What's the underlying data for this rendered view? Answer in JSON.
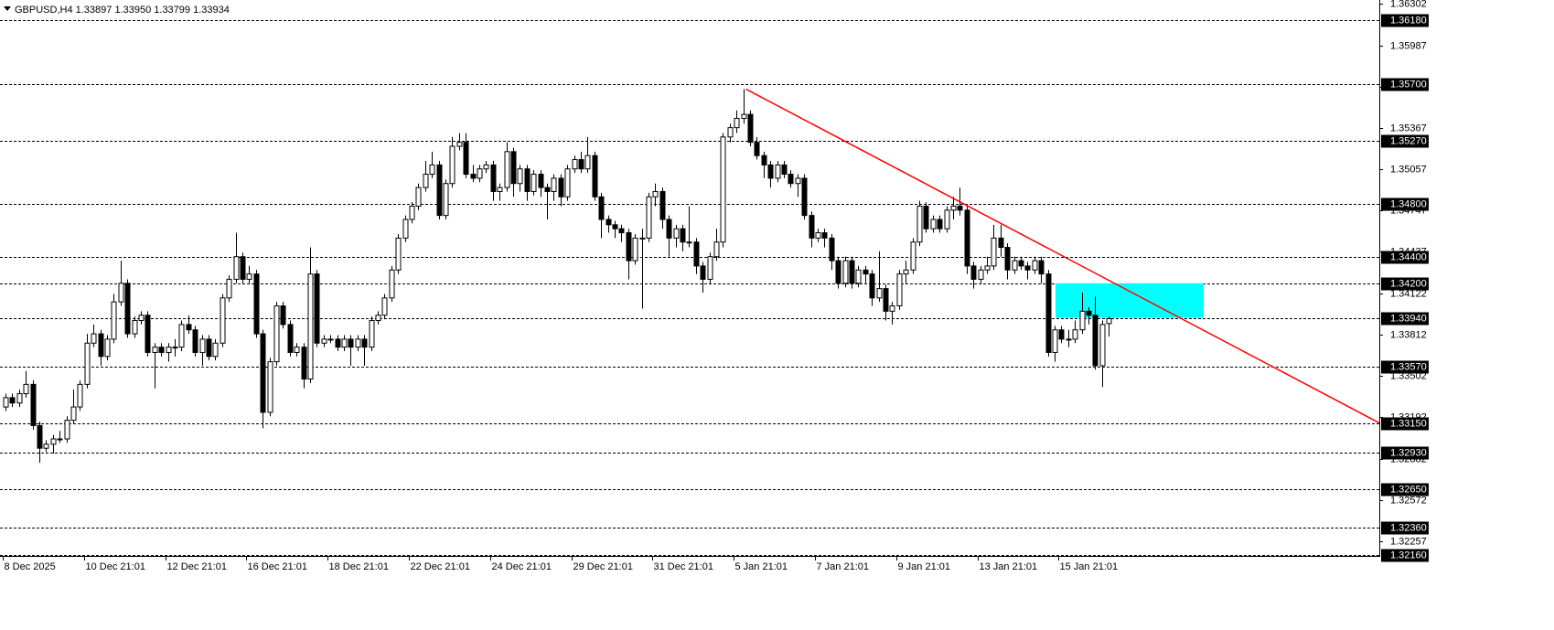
{
  "chart_data": {
    "type": "candlestick",
    "title": "GBPUSD,H4  1.33897 1.33950 1.33799 1.33934",
    "categories": [
      "8 Dec 2025",
      null,
      null,
      null,
      null,
      null,
      null,
      null,
      null,
      null,
      null,
      null,
      "10 Dec 21:01",
      null,
      null,
      null,
      null,
      null,
      null,
      null,
      null,
      null,
      null,
      null,
      "12 Dec 21:01",
      null,
      null,
      null,
      null,
      null,
      null,
      null,
      null,
      null,
      null,
      null,
      "16 Dec 21:01",
      null,
      null,
      null,
      null,
      null,
      null,
      null,
      null,
      null,
      null,
      null,
      "18 Dec 21:01",
      null,
      null,
      null,
      null,
      null,
      null,
      null,
      null,
      null,
      null,
      null,
      "22 Dec 21:01",
      null,
      null,
      null,
      null,
      null,
      null,
      null,
      null,
      null,
      null,
      null,
      "24 Dec 21:01",
      null,
      null,
      null,
      null,
      null,
      null,
      null,
      null,
      null,
      null,
      null,
      "29 Dec 21:01",
      null,
      null,
      null,
      null,
      null,
      null,
      null,
      null,
      null,
      null,
      null,
      "31 Dec 21:01",
      null,
      null,
      null,
      null,
      null,
      null,
      null,
      null,
      null,
      null,
      null,
      "5 Jan 21:01",
      null,
      null,
      null,
      null,
      null,
      null,
      null,
      null,
      null,
      null,
      null,
      "7 Jan 21:01",
      null,
      null,
      null,
      null,
      null,
      null,
      null,
      null,
      null,
      null,
      null,
      "9 Jan 21:01",
      null,
      null,
      null,
      null,
      null,
      null,
      null,
      null,
      null,
      null,
      null,
      "13 Jan 21:01",
      null,
      null,
      null,
      null,
      null,
      null,
      null,
      null,
      null,
      null,
      null,
      "15 Jan 21:01",
      null,
      null,
      null,
      null,
      null,
      null,
      null
    ],
    "open": [
      1.3327,
      1.3334,
      1.333,
      1.3337,
      1.3344,
      1.3313,
      1.3296,
      1.3299,
      1.3303,
      1.3303,
      1.3317,
      1.3327,
      1.3344,
      1.3375,
      1.3382,
      1.3365,
      1.3378,
      1.3406,
      1.342,
      1.3382,
      1.3392,
      1.3396,
      1.3368,
      1.3372,
      1.3368,
      1.3372,
      1.3372,
      1.3389,
      1.3385,
      1.3368,
      1.3378,
      1.3365,
      1.3375,
      1.3409,
      1.3423,
      1.344,
      1.3423,
      1.3427,
      1.3382,
      1.3323,
      1.3361,
      1.3403,
      1.3389,
      1.3368,
      1.3372,
      1.3348,
      1.3427,
      1.3375,
      1.3378,
      1.3378,
      1.3372,
      1.3378,
      1.3372,
      1.3378,
      1.3372,
      1.3392,
      1.3396,
      1.3409,
      1.343,
      1.3454,
      1.3468,
      1.3478,
      1.3492,
      1.3502,
      1.3509,
      1.3471,
      1.3495,
      1.3523,
      1.3526,
      1.3502,
      1.3499,
      1.3506,
      1.3509,
      1.3489,
      1.3492,
      1.3519,
      1.3495,
      1.3506,
      1.3489,
      1.3502,
      1.3492,
      1.3489,
      1.3499,
      1.3485,
      1.3506,
      1.3513,
      1.3506,
      1.3516,
      1.3485,
      1.3468,
      1.3464,
      1.3461,
      1.3458,
      1.3437,
      1.3454,
      1.3454,
      1.3485,
      1.3489,
      1.3468,
      1.3454,
      1.3461,
      1.3451,
      1.3451,
      1.3433,
      1.3423,
      1.344,
      1.3451,
      1.353,
      1.3537,
      1.3544,
      1.3547,
      1.3526,
      1.3516,
      1.3509,
      1.3499,
      1.3509,
      1.3502,
      1.3495,
      1.3499,
      1.3471,
      1.3454,
      1.3458,
      1.3454,
      1.3437,
      1.342,
      1.3437,
      1.342,
      1.343,
      1.3427,
      1.3409,
      1.3416,
      1.3399,
      1.3403,
      1.3427,
      1.343,
      1.3451,
      1.3478,
      1.3461,
      1.3468,
      1.3461,
      1.3475,
      1.3478,
      1.3475,
      1.3433,
      1.3423,
      1.343,
      1.3433,
      1.3454,
      1.3447,
      1.343,
      1.3437,
      1.3433,
      1.343,
      1.3437,
      1.3427,
      1.3368,
      1.3385,
      1.3378,
      1.3378,
      1.3385,
      1.3399,
      1.3396,
      1.3358,
      1.33897
    ],
    "high": [
      1.3337,
      1.3337,
      1.334,
      1.3354,
      1.3347,
      1.3316,
      1.3302,
      1.3306,
      1.3309,
      1.332,
      1.334,
      1.3347,
      1.3382,
      1.3389,
      1.3385,
      1.3381,
      1.3412,
      1.3437,
      1.3423,
      1.3395,
      1.3399,
      1.3399,
      1.3375,
      1.3375,
      1.3375,
      1.3378,
      1.3392,
      1.3396,
      1.3388,
      1.3381,
      1.3381,
      1.3378,
      1.3412,
      1.3426,
      1.3458,
      1.3443,
      1.3433,
      1.343,
      1.3385,
      1.3364,
      1.3406,
      1.3406,
      1.3392,
      1.3375,
      1.3375,
      1.3447,
      1.343,
      1.3381,
      1.3381,
      1.3381,
      1.3381,
      1.3381,
      1.3381,
      1.3381,
      1.3395,
      1.3399,
      1.3412,
      1.3433,
      1.3457,
      1.3471,
      1.3481,
      1.3495,
      1.3512,
      1.3519,
      1.3512,
      1.3498,
      1.353,
      1.3533,
      1.3533,
      1.3509,
      1.3509,
      1.3512,
      1.3512,
      1.3495,
      1.3526,
      1.3522,
      1.3509,
      1.3509,
      1.3505,
      1.3505,
      1.3495,
      1.3502,
      1.3502,
      1.3509,
      1.3516,
      1.3519,
      1.353,
      1.3519,
      1.3488,
      1.3471,
      1.3467,
      1.3464,
      1.3461,
      1.3457,
      1.3461,
      1.3488,
      1.3495,
      1.3492,
      1.3471,
      1.3464,
      1.3464,
      1.3478,
      1.3454,
      1.3436,
      1.3443,
      1.3461,
      1.3533,
      1.354,
      1.355,
      1.3566,
      1.355,
      1.353,
      1.3519,
      1.3512,
      1.3512,
      1.3512,
      1.3505,
      1.3502,
      1.3502,
      1.3474,
      1.3461,
      1.3461,
      1.3457,
      1.344,
      1.344,
      1.344,
      1.3433,
      1.3433,
      1.343,
      1.3444,
      1.3419,
      1.3406,
      1.343,
      1.3437,
      1.3454,
      1.3482,
      1.3481,
      1.3471,
      1.3471,
      1.3478,
      1.3485,
      1.3492,
      1.3478,
      1.3436,
      1.3433,
      1.344,
      1.3464,
      1.3464,
      1.345,
      1.344,
      1.344,
      1.3436,
      1.344,
      1.344,
      1.343,
      1.3388,
      1.3388,
      1.3385,
      1.3392,
      1.3413,
      1.3402,
      1.341,
      1.3392,
      1.3395
    ],
    "low": [
      1.3324,
      1.3327,
      1.3327,
      1.3334,
      1.331,
      1.3285,
      1.3293,
      1.3292,
      1.33,
      1.33,
      1.3314,
      1.3324,
      1.3341,
      1.3372,
      1.3358,
      1.3362,
      1.3375,
      1.3403,
      1.3379,
      1.3379,
      1.3389,
      1.3365,
      1.3341,
      1.3365,
      1.3361,
      1.3365,
      1.3369,
      1.3382,
      1.3365,
      1.3358,
      1.3362,
      1.3362,
      1.3372,
      1.3406,
      1.342,
      1.342,
      1.342,
      1.3379,
      1.3311,
      1.332,
      1.3358,
      1.3386,
      1.3365,
      1.3365,
      1.3341,
      1.3345,
      1.3372,
      1.3372,
      1.3375,
      1.3369,
      1.3369,
      1.3358,
      1.3369,
      1.3358,
      1.3369,
      1.3389,
      1.3393,
      1.3406,
      1.3427,
      1.3451,
      1.3465,
      1.3475,
      1.3489,
      1.3499,
      1.3468,
      1.3468,
      1.3492,
      1.352,
      1.3499,
      1.3496,
      1.3496,
      1.3503,
      1.3482,
      1.3482,
      1.3489,
      1.3485,
      1.3489,
      1.3482,
      1.3486,
      1.3485,
      1.3468,
      1.3482,
      1.3478,
      1.3482,
      1.3503,
      1.3503,
      1.3503,
      1.3482,
      1.3454,
      1.3458,
      1.3454,
      1.3451,
      1.3423,
      1.3434,
      1.3401,
      1.3451,
      1.3478,
      1.3461,
      1.344,
      1.3447,
      1.3444,
      1.3447,
      1.3427,
      1.3413,
      1.342,
      1.3437,
      1.3447,
      1.3526,
      1.3533,
      1.354,
      1.3523,
      1.3513,
      1.3499,
      1.3492,
      1.3496,
      1.3499,
      1.3492,
      1.3485,
      1.3468,
      1.3447,
      1.3451,
      1.3447,
      1.343,
      1.3416,
      1.3417,
      1.3416,
      1.3417,
      1.342,
      1.3403,
      1.3406,
      1.3392,
      1.3389,
      1.34,
      1.342,
      1.3427,
      1.3448,
      1.3458,
      1.3458,
      1.3458,
      1.3458,
      1.3468,
      1.3471,
      1.3427,
      1.3416,
      1.342,
      1.3427,
      1.343,
      1.344,
      1.3423,
      1.3427,
      1.343,
      1.3423,
      1.3427,
      1.342,
      1.3365,
      1.3361,
      1.3375,
      1.3372,
      1.3375,
      1.3382,
      1.3389,
      1.3355,
      1.3342,
      1.33799
    ],
    "close": [
      1.3334,
      1.333,
      1.3337,
      1.3344,
      1.3313,
      1.3296,
      1.3299,
      1.3303,
      1.3303,
      1.3317,
      1.3327,
      1.3344,
      1.3375,
      1.3382,
      1.3365,
      1.3378,
      1.3406,
      1.342,
      1.3382,
      1.3392,
      1.3396,
      1.3368,
      1.3372,
      1.3368,
      1.3372,
      1.3372,
      1.3389,
      1.3385,
      1.3368,
      1.3378,
      1.3365,
      1.3375,
      1.3409,
      1.3423,
      1.344,
      1.3423,
      1.3427,
      1.3382,
      1.3323,
      1.3361,
      1.3403,
      1.3389,
      1.3368,
      1.3372,
      1.3348,
      1.3427,
      1.3375,
      1.3378,
      1.3378,
      1.3372,
      1.3378,
      1.3372,
      1.3378,
      1.3372,
      1.3392,
      1.3396,
      1.3409,
      1.343,
      1.3454,
      1.3468,
      1.3478,
      1.3492,
      1.3502,
      1.3509,
      1.3471,
      1.3495,
      1.3523,
      1.3526,
      1.3502,
      1.3499,
      1.3506,
      1.3509,
      1.3489,
      1.3492,
      1.3519,
      1.3495,
      1.3506,
      1.3489,
      1.3502,
      1.3492,
      1.3489,
      1.3499,
      1.3485,
      1.3506,
      1.3513,
      1.3506,
      1.3516,
      1.3485,
      1.3468,
      1.3464,
      1.3461,
      1.3458,
      1.3437,
      1.3454,
      1.3454,
      1.3485,
      1.3489,
      1.3468,
      1.3454,
      1.3461,
      1.3451,
      1.3451,
      1.3433,
      1.3423,
      1.344,
      1.3451,
      1.353,
      1.3537,
      1.3544,
      1.3547,
      1.3526,
      1.3516,
      1.3509,
      1.3499,
      1.3509,
      1.3502,
      1.3495,
      1.3499,
      1.3471,
      1.3454,
      1.3458,
      1.3454,
      1.3437,
      1.342,
      1.3437,
      1.342,
      1.343,
      1.3427,
      1.3409,
      1.3416,
      1.3399,
      1.3403,
      1.3427,
      1.343,
      1.3451,
      1.3478,
      1.3461,
      1.3468,
      1.3461,
      1.3475,
      1.3478,
      1.3475,
      1.3433,
      1.3423,
      1.343,
      1.3433,
      1.3454,
      1.3447,
      1.343,
      1.3437,
      1.3433,
      1.343,
      1.3437,
      1.3427,
      1.3368,
      1.3385,
      1.3378,
      1.3378,
      1.3385,
      1.3399,
      1.3396,
      1.3358,
      1.3389,
      1.33934
    ],
    "up_color": "#ffffff",
    "down_color": "#000000",
    "ylim": [
      1.3215,
      1.3633
    ],
    "yticks": [
      1.36302,
      1.35987,
      1.35677,
      1.35367,
      1.35057,
      1.34747,
      1.34437,
      1.34122,
      1.33812,
      1.33502,
      1.33192,
      1.32882,
      1.32572,
      1.32257
    ],
    "levels": [
      {
        "value": 1.3618,
        "label": "1.36180"
      },
      {
        "value": 1.357,
        "label": "1.35700"
      },
      {
        "value": 1.3527,
        "label": "1.35270"
      },
      {
        "value": 1.348,
        "label": "1.34800"
      },
      {
        "value": 1.344,
        "label": "1.34400"
      },
      {
        "value": 1.342,
        "label": "1.34200"
      },
      {
        "value": 1.3394,
        "label": "1.33940"
      },
      {
        "value": 1.3357,
        "label": "1.33570"
      },
      {
        "value": 1.3315,
        "label": "1.33150"
      },
      {
        "value": 1.3293,
        "label": "1.32930"
      },
      {
        "value": 1.3265,
        "label": "1.32650"
      },
      {
        "value": 1.3236,
        "label": "1.32360"
      },
      {
        "value": 1.3216,
        "label": "1.32160"
      }
    ],
    "trendline": {
      "color": "#ff0000",
      "values": [
        1.3566,
        1.3315
      ]
    },
    "zone": {
      "color": "#00ffff",
      "values": [
        1.342,
        1.3394
      ]
    }
  }
}
